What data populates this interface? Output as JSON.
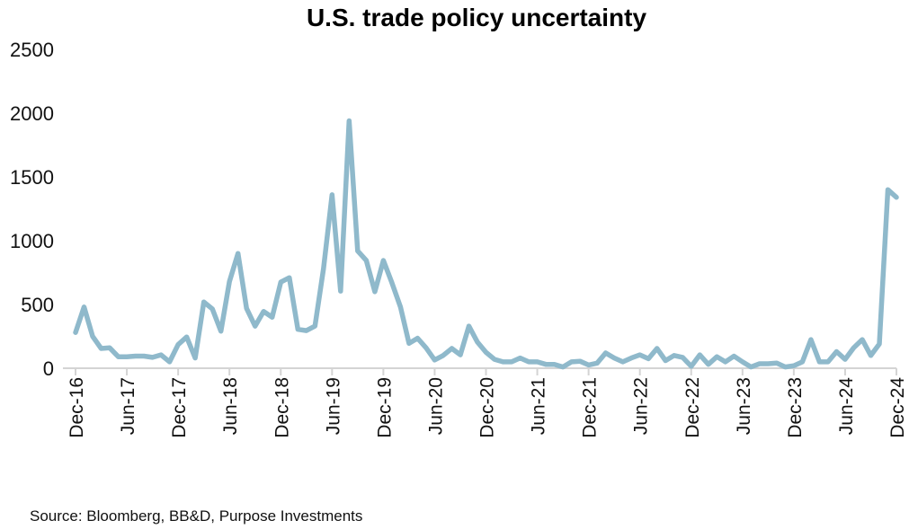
{
  "chart_data": {
    "type": "line",
    "title": "U.S. trade policy uncertainty",
    "xlabel": "",
    "ylabel": "",
    "ylim": [
      0,
      2500
    ],
    "yticks": [
      "0",
      "500",
      "1000",
      "1500",
      "2000",
      "2500"
    ],
    "xticks": [
      "Dec-16",
      "Jun-17",
      "Dec-17",
      "Jun-18",
      "Dec-18",
      "Jun-19",
      "Dec-19",
      "Jun-20",
      "Dec-20",
      "Jun-21",
      "Dec-21",
      "Jun-22",
      "Dec-22",
      "Jun-23",
      "Dec-23",
      "Jun-24",
      "Dec-24"
    ],
    "grid": false,
    "legend": "none",
    "line_color": "#8fb9cb",
    "x_range": [
      "Dec-16",
      "Dec-24"
    ],
    "frequency": "monthly",
    "values": [
      280,
      480,
      250,
      155,
      160,
      90,
      90,
      95,
      95,
      85,
      105,
      50,
      185,
      245,
      80,
      520,
      465,
      290,
      680,
      900,
      470,
      330,
      445,
      400,
      675,
      710,
      305,
      295,
      330,
      780,
      1360,
      605,
      1940,
      920,
      845,
      600,
      845,
      670,
      480,
      195,
      235,
      160,
      65,
      100,
      155,
      105,
      330,
      205,
      125,
      70,
      50,
      50,
      80,
      50,
      50,
      30,
      30,
      10,
      50,
      55,
      25,
      40,
      120,
      80,
      50,
      80,
      105,
      75,
      155,
      60,
      100,
      85,
      15,
      105,
      30,
      90,
      50,
      95,
      50,
      10,
      35,
      35,
      40,
      10,
      20,
      50,
      225,
      50,
      50,
      130,
      70,
      160,
      225,
      100,
      190,
      1400,
      1340
    ]
  },
  "source": "Source: Bloomberg, BB&D, Purpose Investments"
}
